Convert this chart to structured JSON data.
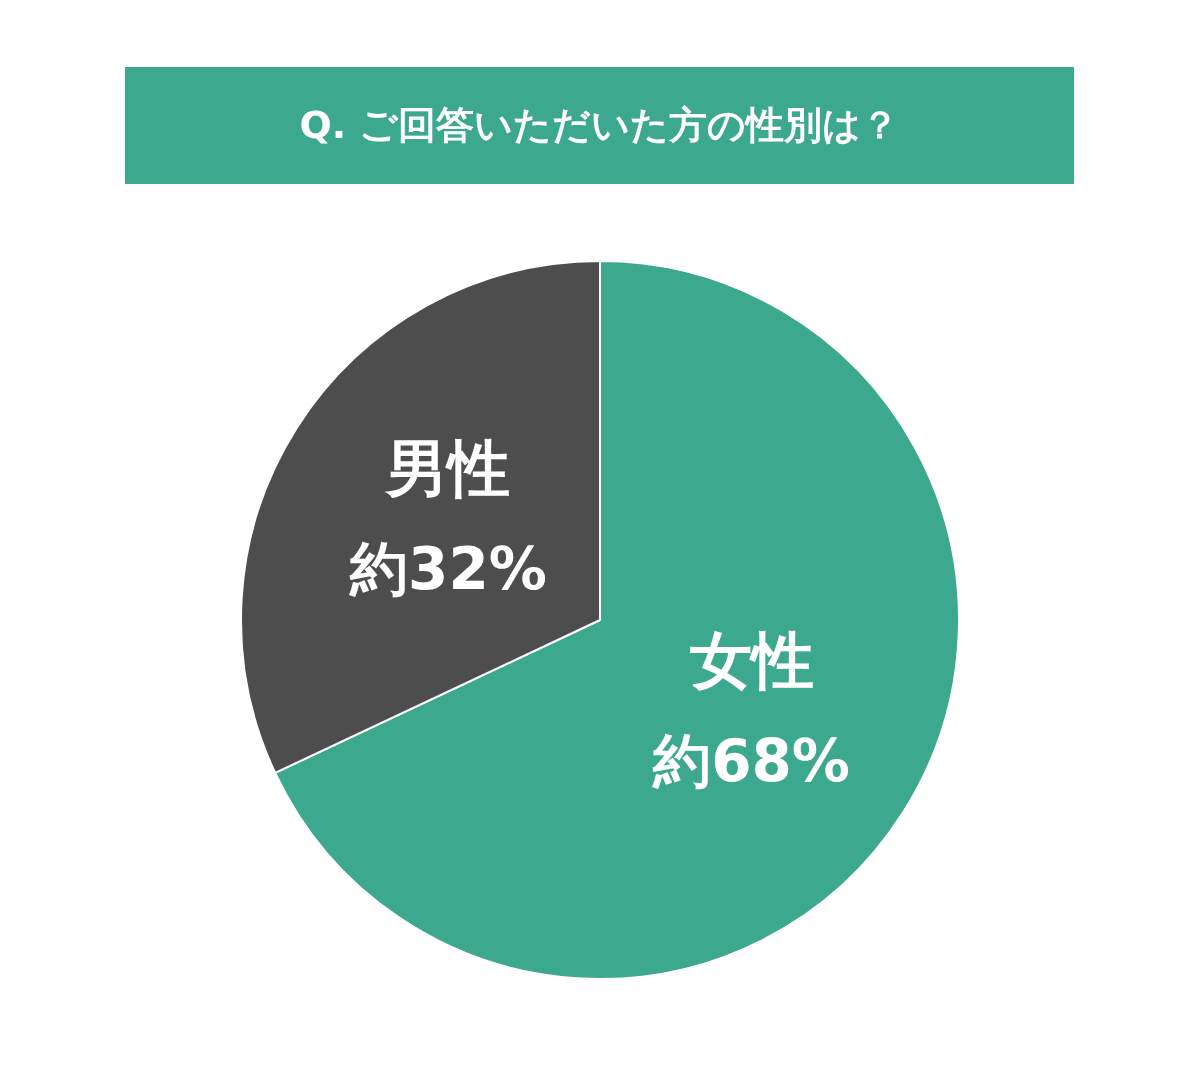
{
  "chart_data": {
    "type": "pie",
    "title": "Q. ご回答いただいた方の性別は？",
    "categories": [
      "女性",
      "男性"
    ],
    "values": [
      68,
      32
    ],
    "colors": [
      "#3ca88e",
      "#4d4d4d"
    ],
    "value_labels": [
      "約68%",
      "約32%"
    ],
    "legend": false
  }
}
